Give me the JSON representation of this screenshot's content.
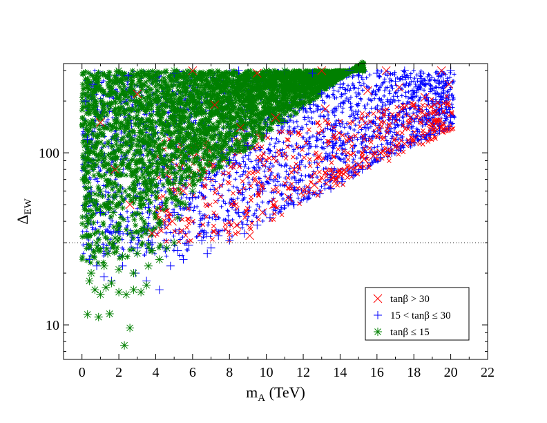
{
  "chart_data": {
    "type": "scatter",
    "title": "",
    "xlabel": {
      "main": "m",
      "sub": "A",
      "unit": " (TeV)"
    },
    "ylabel": {
      "main": "Δ",
      "sub": "EW"
    },
    "xlim": [
      -1,
      22
    ],
    "ylim": [
      6.3,
      330
    ],
    "yscale": "log",
    "x_ticks": [
      0,
      2,
      4,
      6,
      8,
      10,
      12,
      14,
      16,
      18,
      20,
      22
    ],
    "x_tick_labels": [
      "0",
      "2",
      "4",
      "6",
      "8",
      "10",
      "12",
      "14",
      "16",
      "18",
      "20",
      "22"
    ],
    "y_tick_labels": [
      {
        "value": 10,
        "label": "10"
      },
      {
        "value": 100,
        "label": "100"
      }
    ],
    "reference_line": {
      "y": 30,
      "style": "dotted"
    },
    "legend": {
      "placement": "bottom-right",
      "entries": [
        {
          "label": "tanβ > 30",
          "color": "#ff0000",
          "marker": "x"
        },
        {
          "label": "15 < tanβ ≤ 30",
          "color": "#0000ff",
          "marker": "+"
        },
        {
          "label": "tanβ ≤ 15",
          "color": "#008000",
          "marker": "*"
        }
      ]
    },
    "series": [
      {
        "name": "tanβ > 30",
        "color": "#ff0000",
        "marker": "x",
        "points": [
          [
            13.6,
            72
          ],
          [
            13.8,
            70
          ],
          [
            14.0,
            75
          ],
          [
            14.3,
            77
          ],
          [
            14.6,
            82
          ],
          [
            15.0,
            85
          ],
          [
            15.3,
            92
          ],
          [
            15.8,
            96
          ],
          [
            16.2,
            100
          ],
          [
            16.6,
            104
          ],
          [
            17.0,
            108
          ],
          [
            17.5,
            113
          ],
          [
            18.0,
            118
          ],
          [
            18.5,
            123
          ],
          [
            19.0,
            128
          ],
          [
            19.5,
            135
          ],
          [
            19.8,
            140
          ],
          [
            9.1,
            33
          ],
          [
            8.4,
            38
          ],
          [
            9.8,
            45
          ],
          [
            10.4,
            50
          ],
          [
            11.2,
            55
          ],
          [
            12.0,
            60
          ],
          [
            12.6,
            65
          ],
          [
            11.5,
            80
          ],
          [
            12.8,
            95
          ],
          [
            14.5,
            120
          ],
          [
            16.0,
            140
          ],
          [
            17.8,
            160
          ],
          [
            19.2,
            175
          ],
          [
            18.6,
            210
          ],
          [
            17.2,
            240
          ],
          [
            15.5,
            230
          ],
          [
            13.2,
            180
          ],
          [
            10.5,
            160
          ],
          [
            8.6,
            140
          ],
          [
            7.2,
            190
          ],
          [
            5.5,
            60
          ],
          [
            4.9,
            40
          ],
          [
            3.8,
            34
          ],
          [
            2.6,
            50
          ],
          [
            1.8,
            80
          ],
          [
            1.0,
            150
          ],
          [
            3.0,
            220
          ],
          [
            6.0,
            300
          ],
          [
            9.5,
            290
          ],
          [
            13.0,
            300
          ],
          [
            16.5,
            300
          ],
          [
            19.5,
            300
          ],
          [
            19.9,
            250
          ]
        ]
      },
      {
        "name": "15 < tanβ ≤ 30",
        "color": "#0000ff",
        "marker": "+",
        "points": [
          [
            4.2,
            16
          ],
          [
            3.5,
            18
          ],
          [
            2.9,
            20
          ],
          [
            2.2,
            22
          ],
          [
            1.6,
            18
          ],
          [
            1.2,
            19
          ],
          [
            0.8,
            22
          ],
          [
            0.4,
            24
          ],
          [
            5.2,
            27
          ],
          [
            5.8,
            29
          ],
          [
            6.5,
            31
          ],
          [
            7.0,
            28
          ],
          [
            7.4,
            33
          ],
          [
            8.0,
            31
          ],
          [
            8.8,
            34
          ],
          [
            9.5,
            38
          ],
          [
            10.2,
            42
          ],
          [
            10.8,
            47
          ],
          [
            11.5,
            50
          ],
          [
            12.2,
            54
          ],
          [
            12.9,
            58
          ],
          [
            13.5,
            62
          ],
          [
            14.1,
            68
          ],
          [
            14.7,
            74
          ],
          [
            15.2,
            80
          ],
          [
            15.7,
            88
          ],
          [
            16.2,
            94
          ],
          [
            16.8,
            100
          ],
          [
            17.3,
            108
          ],
          [
            17.8,
            114
          ],
          [
            18.4,
            120
          ],
          [
            18.9,
            128
          ],
          [
            19.4,
            134
          ],
          [
            19.9,
            142
          ],
          [
            20.0,
            160
          ],
          [
            19.5,
            180
          ],
          [
            18.8,
            200
          ],
          [
            18.0,
            230
          ],
          [
            17.0,
            260
          ],
          [
            16.0,
            290
          ],
          [
            15.0,
            280
          ],
          [
            14.0,
            250
          ],
          [
            13.0,
            220
          ],
          [
            12.0,
            180
          ],
          [
            11.0,
            150
          ],
          [
            10.0,
            130
          ],
          [
            9.0,
            110
          ],
          [
            8.0,
            90
          ],
          [
            7.0,
            70
          ],
          [
            6.0,
            55
          ],
          [
            5.0,
            45
          ],
          [
            4.5,
            38
          ],
          [
            3.8,
            30
          ],
          [
            3.0,
            28
          ],
          [
            2.0,
            35
          ],
          [
            1.0,
            45
          ],
          [
            0.5,
            60
          ],
          [
            6.8,
            26
          ],
          [
            5.5,
            24
          ],
          [
            4.8,
            22
          ],
          [
            8.5,
            45
          ],
          [
            9.8,
            60
          ],
          [
            11.8,
            85
          ],
          [
            13.6,
            110
          ],
          [
            15.4,
            140
          ],
          [
            17.6,
            170
          ],
          [
            19.2,
            220
          ],
          [
            18.4,
            270
          ],
          [
            12.5,
            290
          ],
          [
            8.5,
            300
          ],
          [
            5.0,
            290
          ],
          [
            2.5,
            280
          ],
          [
            0.6,
            250
          ],
          [
            0.3,
            120
          ],
          [
            0.2,
            200
          ],
          [
            20.0,
            300
          ],
          [
            19.6,
            260
          ],
          [
            17.5,
            300
          ],
          [
            14.5,
            300
          ],
          [
            11.0,
            300
          ]
        ]
      },
      {
        "name": "tanβ ≤ 15",
        "color": "#008000",
        "marker": "*",
        "points": [
          [
            0.3,
            11.5
          ],
          [
            0.9,
            11.1
          ],
          [
            1.5,
            11.6
          ],
          [
            2.3,
            7.6
          ],
          [
            2.6,
            9.6
          ],
          [
            0.4,
            18
          ],
          [
            0.7,
            16
          ],
          [
            1.0,
            15
          ],
          [
            1.3,
            16.5
          ],
          [
            1.6,
            17.5
          ],
          [
            2.0,
            15.5
          ],
          [
            2.4,
            15
          ],
          [
            2.8,
            16
          ],
          [
            3.2,
            15.5
          ],
          [
            3.5,
            17
          ],
          [
            0.5,
            20
          ],
          [
            1.2,
            22
          ],
          [
            2.0,
            21
          ],
          [
            2.8,
            20
          ],
          [
            3.6,
            22
          ],
          [
            4.2,
            24
          ],
          [
            0.6,
            25
          ],
          [
            1.4,
            26
          ],
          [
            2.2,
            25
          ],
          [
            3.0,
            26
          ],
          [
            3.8,
            27
          ],
          [
            4.6,
            28
          ],
          [
            5.0,
            30
          ],
          [
            0.8,
            30
          ],
          [
            1.8,
            32
          ],
          [
            2.6,
            34
          ],
          [
            3.4,
            36
          ],
          [
            4.2,
            38
          ],
          [
            5.2,
            42
          ],
          [
            5.6,
            50
          ],
          [
            6.0,
            60
          ],
          [
            6.4,
            75
          ],
          [
            6.8,
            90
          ],
          [
            7.4,
            110
          ],
          [
            8.0,
            130
          ],
          [
            8.8,
            150
          ],
          [
            9.6,
            170
          ],
          [
            10.5,
            200
          ],
          [
            11.5,
            230
          ],
          [
            12.5,
            250
          ],
          [
            13.5,
            270
          ],
          [
            14.5,
            290
          ],
          [
            15.2,
            300
          ],
          [
            0.3,
            40
          ],
          [
            1.0,
            60
          ],
          [
            2.0,
            80
          ],
          [
            3.0,
            100
          ],
          [
            4.0,
            130
          ],
          [
            5.0,
            160
          ],
          [
            6.0,
            200
          ],
          [
            7.0,
            240
          ],
          [
            8.0,
            270
          ],
          [
            9.0,
            290
          ],
          [
            10.0,
            300
          ],
          [
            11.0,
            300
          ],
          [
            12.0,
            295
          ],
          [
            0.2,
            100
          ],
          [
            0.5,
            150
          ],
          [
            1.0,
            200
          ],
          [
            1.5,
            260
          ],
          [
            2.0,
            300
          ],
          [
            3.0,
            290
          ],
          [
            4.0,
            260
          ],
          [
            5.0,
            300
          ],
          [
            6.0,
            280
          ],
          [
            1.7,
            45
          ],
          [
            2.8,
            55
          ],
          [
            3.9,
            70
          ],
          [
            4.8,
            90
          ],
          [
            5.5,
            120
          ],
          [
            6.5,
            150
          ],
          [
            7.5,
            180
          ],
          [
            8.5,
            210
          ],
          [
            9.5,
            240
          ]
        ]
      }
    ]
  }
}
